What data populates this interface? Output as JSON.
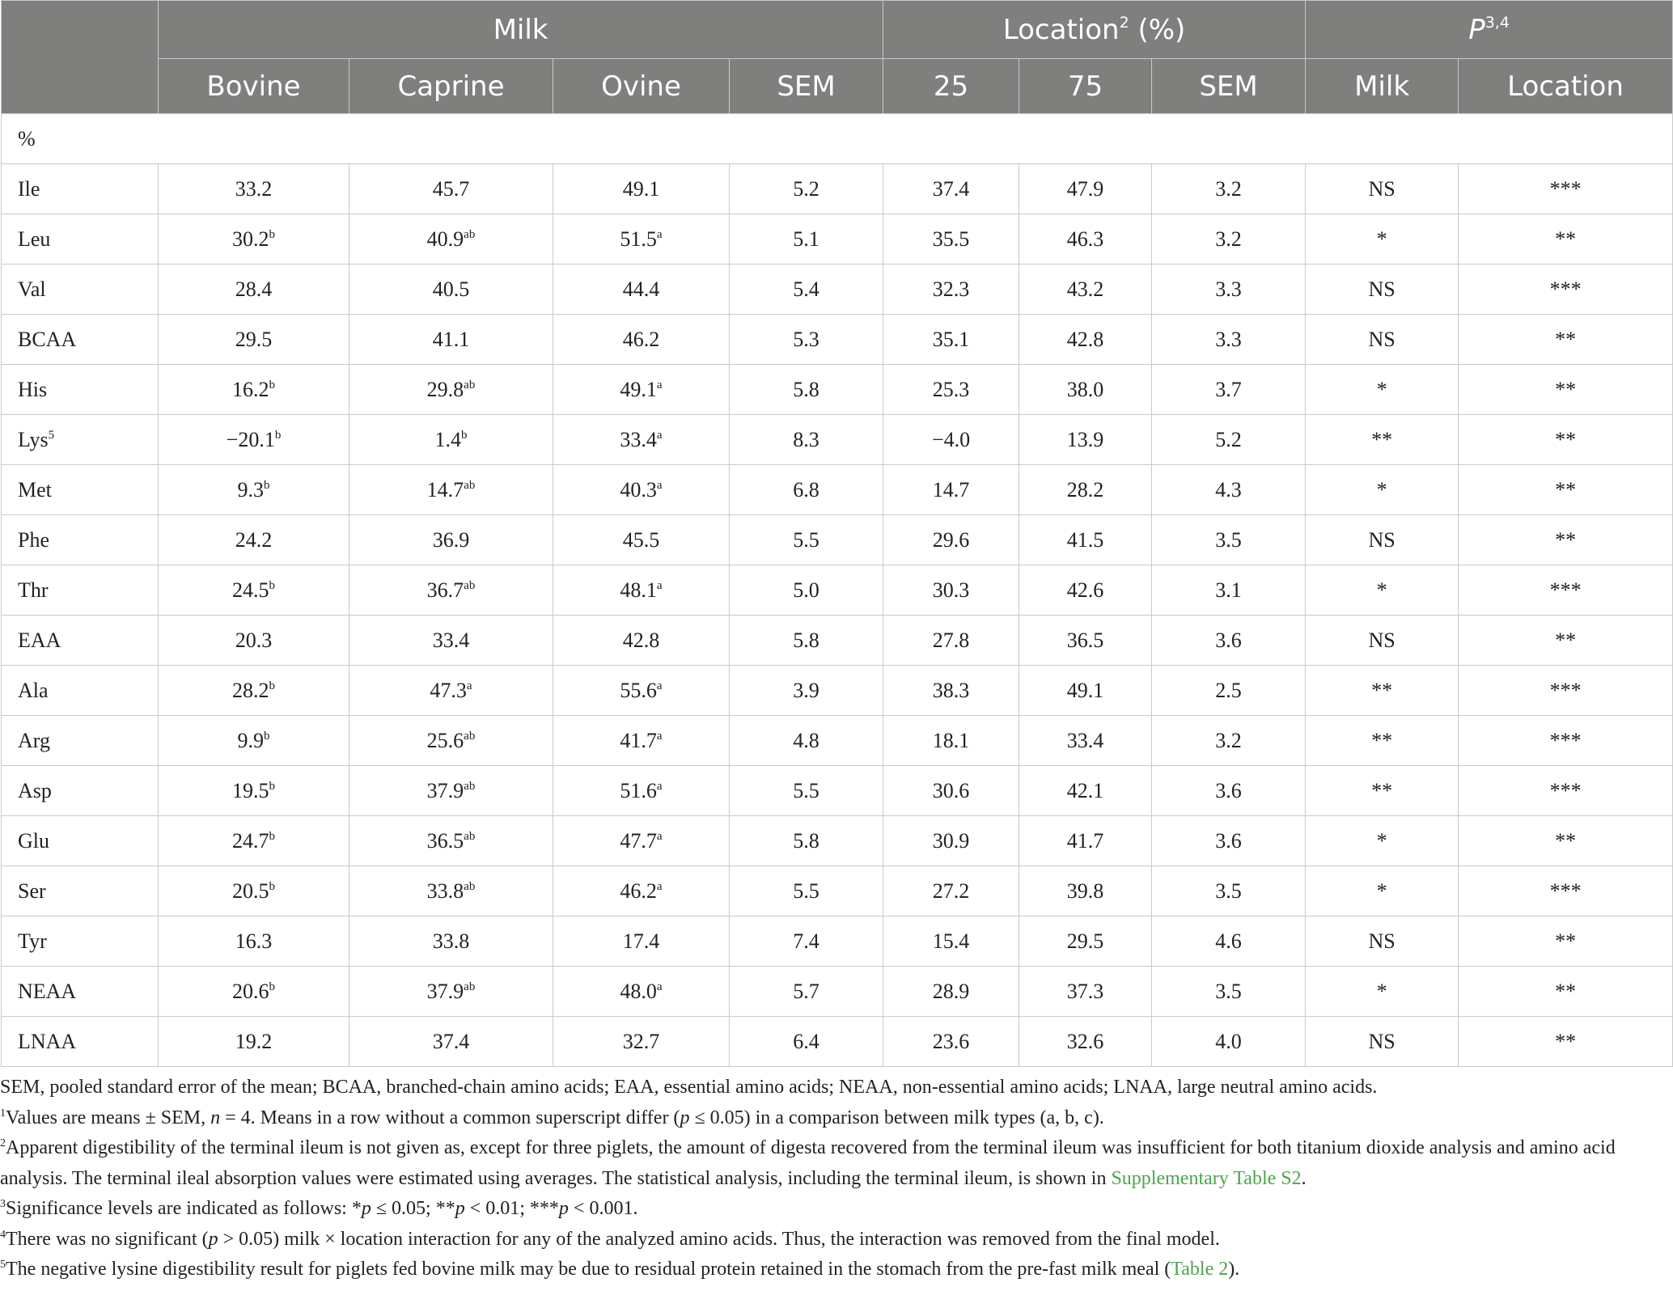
{
  "table": {
    "group_headers": {
      "milk": "Milk",
      "location": "Location",
      "location_sup": "2",
      "location_unit": " (%)",
      "p": "P",
      "p_sup": "3,4"
    },
    "columns": [
      "Bovine",
      "Caprine",
      "Ovine",
      "SEM",
      "25",
      "75",
      "SEM",
      "Milk",
      "Location"
    ],
    "unit_row": "%",
    "rows": [
      {
        "aa": "Ile",
        "aa_sup": "",
        "bovine": "33.2",
        "bovine_sup": "",
        "caprine": "45.7",
        "caprine_sup": "",
        "ovine": "49.1",
        "ovine_sup": "",
        "sem1": "5.2",
        "loc25": "37.4",
        "loc75": "47.9",
        "sem2": "3.2",
        "p_milk": "NS",
        "p_loc": "***"
      },
      {
        "aa": "Leu",
        "aa_sup": "",
        "bovine": "30.2",
        "bovine_sup": "b",
        "caprine": "40.9",
        "caprine_sup": "ab",
        "ovine": "51.5",
        "ovine_sup": "a",
        "sem1": "5.1",
        "loc25": "35.5",
        "loc75": "46.3",
        "sem2": "3.2",
        "p_milk": "*",
        "p_loc": "**"
      },
      {
        "aa": "Val",
        "aa_sup": "",
        "bovine": "28.4",
        "bovine_sup": "",
        "caprine": "40.5",
        "caprine_sup": "",
        "ovine": "44.4",
        "ovine_sup": "",
        "sem1": "5.4",
        "loc25": "32.3",
        "loc75": "43.2",
        "sem2": "3.3",
        "p_milk": "NS",
        "p_loc": "***"
      },
      {
        "aa": "BCAA",
        "aa_sup": "",
        "bovine": "29.5",
        "bovine_sup": "",
        "caprine": "41.1",
        "caprine_sup": "",
        "ovine": "46.2",
        "ovine_sup": "",
        "sem1": "5.3",
        "loc25": "35.1",
        "loc75": "42.8",
        "sem2": "3.3",
        "p_milk": "NS",
        "p_loc": "**"
      },
      {
        "aa": "His",
        "aa_sup": "",
        "bovine": "16.2",
        "bovine_sup": "b",
        "caprine": "29.8",
        "caprine_sup": "ab",
        "ovine": "49.1",
        "ovine_sup": "a",
        "sem1": "5.8",
        "loc25": "25.3",
        "loc75": "38.0",
        "sem2": "3.7",
        "p_milk": "*",
        "p_loc": "**"
      },
      {
        "aa": "Lys",
        "aa_sup": "5",
        "bovine": "−20.1",
        "bovine_sup": "b",
        "caprine": "1.4",
        "caprine_sup": "b",
        "ovine": "33.4",
        "ovine_sup": "a",
        "sem1": "8.3",
        "loc25": "−4.0",
        "loc75": "13.9",
        "sem2": "5.2",
        "p_milk": "**",
        "p_loc": "**"
      },
      {
        "aa": "Met",
        "aa_sup": "",
        "bovine": "9.3",
        "bovine_sup": "b",
        "caprine": "14.7",
        "caprine_sup": "ab",
        "ovine": "40.3",
        "ovine_sup": "a",
        "sem1": "6.8",
        "loc25": "14.7",
        "loc75": "28.2",
        "sem2": "4.3",
        "p_milk": "*",
        "p_loc": "**"
      },
      {
        "aa": "Phe",
        "aa_sup": "",
        "bovine": "24.2",
        "bovine_sup": "",
        "caprine": "36.9",
        "caprine_sup": "",
        "ovine": "45.5",
        "ovine_sup": "",
        "sem1": "5.5",
        "loc25": "29.6",
        "loc75": "41.5",
        "sem2": "3.5",
        "p_milk": "NS",
        "p_loc": "**"
      },
      {
        "aa": "Thr",
        "aa_sup": "",
        "bovine": "24.5",
        "bovine_sup": "b",
        "caprine": "36.7",
        "caprine_sup": "ab",
        "ovine": "48.1",
        "ovine_sup": "a",
        "sem1": "5.0",
        "loc25": "30.3",
        "loc75": "42.6",
        "sem2": "3.1",
        "p_milk": "*",
        "p_loc": "***"
      },
      {
        "aa": "EAA",
        "aa_sup": "",
        "bovine": "20.3",
        "bovine_sup": "",
        "caprine": "33.4",
        "caprine_sup": "",
        "ovine": "42.8",
        "ovine_sup": "",
        "sem1": "5.8",
        "loc25": "27.8",
        "loc75": "36.5",
        "sem2": "3.6",
        "p_milk": "NS",
        "p_loc": "**"
      },
      {
        "aa": "Ala",
        "aa_sup": "",
        "bovine": "28.2",
        "bovine_sup": "b",
        "caprine": "47.3",
        "caprine_sup": "a",
        "ovine": "55.6",
        "ovine_sup": "a",
        "sem1": "3.9",
        "loc25": "38.3",
        "loc75": "49.1",
        "sem2": "2.5",
        "p_milk": "**",
        "p_loc": "***"
      },
      {
        "aa": "Arg",
        "aa_sup": "",
        "bovine": "9.9",
        "bovine_sup": "b",
        "caprine": "25.6",
        "caprine_sup": "ab",
        "ovine": "41.7",
        "ovine_sup": "a",
        "sem1": "4.8",
        "loc25": "18.1",
        "loc75": "33.4",
        "sem2": "3.2",
        "p_milk": "**",
        "p_loc": "***"
      },
      {
        "aa": "Asp",
        "aa_sup": "",
        "bovine": "19.5",
        "bovine_sup": "b",
        "caprine": "37.9",
        "caprine_sup": "ab",
        "ovine": "51.6",
        "ovine_sup": "a",
        "sem1": "5.5",
        "loc25": "30.6",
        "loc75": "42.1",
        "sem2": "3.6",
        "p_milk": "**",
        "p_loc": "***"
      },
      {
        "aa": "Glu",
        "aa_sup": "",
        "bovine": "24.7",
        "bovine_sup": "b",
        "caprine": "36.5",
        "caprine_sup": "ab",
        "ovine": "47.7",
        "ovine_sup": "a",
        "sem1": "5.8",
        "loc25": "30.9",
        "loc75": "41.7",
        "sem2": "3.6",
        "p_milk": "*",
        "p_loc": "**"
      },
      {
        "aa": "Ser",
        "aa_sup": "",
        "bovine": "20.5",
        "bovine_sup": "b",
        "caprine": "33.8",
        "caprine_sup": "ab",
        "ovine": "46.2",
        "ovine_sup": "a",
        "sem1": "5.5",
        "loc25": "27.2",
        "loc75": "39.8",
        "sem2": "3.5",
        "p_milk": "*",
        "p_loc": "***"
      },
      {
        "aa": "Tyr",
        "aa_sup": "",
        "bovine": "16.3",
        "bovine_sup": "",
        "caprine": "33.8",
        "caprine_sup": "",
        "ovine": "17.4",
        "ovine_sup": "",
        "sem1": "7.4",
        "loc25": "15.4",
        "loc75": "29.5",
        "sem2": "4.6",
        "p_milk": "NS",
        "p_loc": "**"
      },
      {
        "aa": "NEAA",
        "aa_sup": "",
        "bovine": "20.6",
        "bovine_sup": "b",
        "caprine": "37.9",
        "caprine_sup": "ab",
        "ovine": "48.0",
        "ovine_sup": "a",
        "sem1": "5.7",
        "loc25": "28.9",
        "loc75": "37.3",
        "sem2": "3.5",
        "p_milk": "*",
        "p_loc": "**"
      },
      {
        "aa": "LNAA",
        "aa_sup": "",
        "bovine": "19.2",
        "bovine_sup": "",
        "caprine": "37.4",
        "caprine_sup": "",
        "ovine": "32.7",
        "ovine_sup": "",
        "sem1": "6.4",
        "loc25": "23.6",
        "loc75": "32.6",
        "sem2": "4.0",
        "p_milk": "NS",
        "p_loc": "**"
      }
    ]
  },
  "footnotes": {
    "abbrev": "SEM, pooled standard error of the mean; BCAA, branched-chain amino acids; EAA, essential amino acids; NEAA, non-essential amino acids; LNAA, large neutral amino acids.",
    "n1_sup": "1",
    "n1_a": "Values are means ± SEM, ",
    "n1_n": "n",
    "n1_b": " = 4. Means in a row without a common superscript differ (",
    "n1_p": "p",
    "n1_c": " ≤ 0.05) in a comparison between milk types (a, b, c).",
    "n2_sup": "2",
    "n2_a": "Apparent digestibility of the terminal ileum is not given as, except for three piglets, the amount of digesta recovered from the terminal ileum was insufficient for both titanium dioxide analysis and amino acid analysis. The terminal ileal absorption values were estimated using averages. The statistical analysis, including the terminal ileum, is shown in ",
    "n2_link": "Supplementary Table S2",
    "n2_b": ".",
    "n3_sup": "3",
    "n3_a": "Significance levels are indicated as follows: *",
    "n3_p1": "p",
    "n3_b": " ≤ 0.05; **",
    "n3_p2": "p",
    "n3_c": " < 0.01; ***",
    "n3_p3": "p",
    "n3_d": " < 0.001.",
    "n4_sup": "4",
    "n4_a": "There was no significant (",
    "n4_p": "p",
    "n4_b": " > 0.05) milk × location interaction for any of the analyzed amino acids. Thus, the interaction was removed from the final model.",
    "n5_sup": "5",
    "n5_a": "The negative lysine digestibility result for piglets fed bovine milk may be due to residual protein retained in the stomach from the pre-fast milk meal (",
    "n5_link": "Table 2",
    "n5_b": ")."
  },
  "colors": {
    "header_bg": "#7f7f7e",
    "link": "#4aa64a"
  }
}
